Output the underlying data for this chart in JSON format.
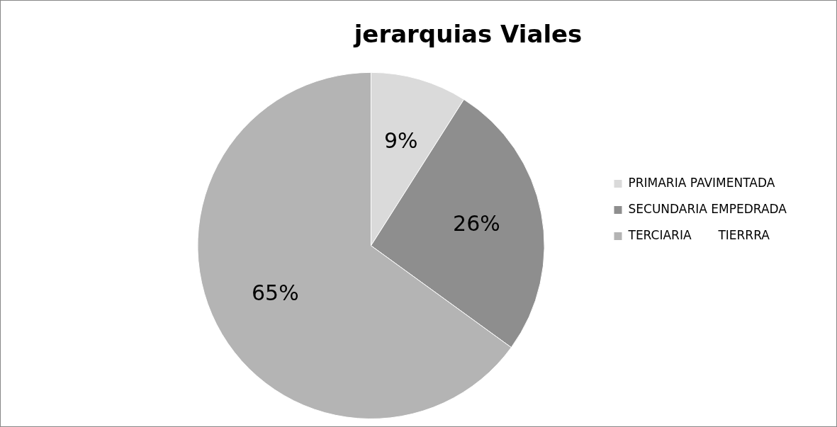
{
  "chart_data": {
    "type": "pie",
    "title": "jerarquias Viales",
    "categories": [
      "PRIMARIA PAVIMENTADA",
      "SECUNDARIA EMPEDRADA",
      "TERCIARIA       TIERRRA"
    ],
    "values": [
      9,
      26,
      65
    ],
    "value_labels": [
      "9%",
      "26%",
      "65%"
    ],
    "colors": [
      "#dadada",
      "#8e8e8e",
      "#b4b4b4"
    ],
    "legend": "right"
  }
}
